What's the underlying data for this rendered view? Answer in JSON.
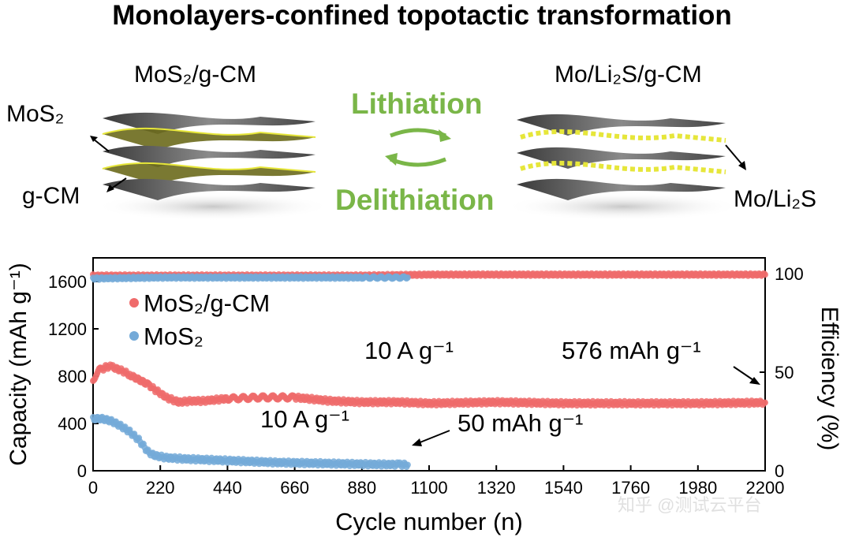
{
  "title": "Monolayers-confined topotactic transformation",
  "schematic": {
    "left_title": "MoS₂/g-CM",
    "right_title": "Mo/Li₂S/g-CM",
    "left_label_top": "MoS₂",
    "left_label_bottom": "g-CM",
    "right_label": "Mo/Li₂S",
    "lithiation": "Lithiation",
    "delithiation": "Delithiation",
    "colors": {
      "green": "#7ab648",
      "yellow": "#e6e63a",
      "layer": "#555555"
    }
  },
  "watermark": "知乎 @测试云平台",
  "chart_data": {
    "type": "scatter",
    "xlabel": "Cycle number (n)",
    "ylabel": "Capacity (mAh g⁻¹)",
    "y2label": "Efficiency (%)",
    "xlim": [
      0,
      2200
    ],
    "ylim": [
      0,
      1800
    ],
    "y2lim": [
      0,
      108
    ],
    "xticks": [
      0,
      220,
      440,
      660,
      880,
      1100,
      1320,
      1540,
      1760,
      1980,
      2200
    ],
    "yticks": [
      0,
      400,
      800,
      1200,
      1600
    ],
    "y2ticks": [
      0,
      50,
      100
    ],
    "legend_position": "top-left",
    "series": [
      {
        "name": "MoS₂/g-CM",
        "color": "#ef6b6b",
        "axis": "left",
        "x": [
          0,
          10,
          20,
          30,
          45,
          60,
          80,
          100,
          120,
          150,
          180,
          200,
          240,
          280,
          320,
          360,
          440,
          550,
          660,
          780,
          880,
          1000,
          1100,
          1320,
          1540,
          1760,
          1980,
          2200
        ],
        "y": [
          760,
          820,
          850,
          860,
          880,
          880,
          860,
          840,
          810,
          770,
          730,
          690,
          620,
          580,
          590,
          590,
          610,
          620,
          620,
          590,
          580,
          580,
          570,
          580,
          570,
          570,
          570,
          576
        ]
      },
      {
        "name": "MoS₂",
        "color": "#74aad8",
        "axis": "left",
        "x": [
          0,
          30,
          60,
          90,
          120,
          150,
          180,
          200,
          240,
          300,
          400,
          500,
          600,
          700,
          800,
          900,
          1000,
          1030
        ],
        "y": [
          440,
          440,
          420,
          380,
          330,
          260,
          160,
          130,
          110,
          100,
          90,
          80,
          70,
          65,
          60,
          55,
          52,
          50
        ]
      },
      {
        "name": "",
        "color": "#ef6b6b",
        "axis": "right",
        "x": [
          0,
          220,
          440,
          660,
          880,
          1100,
          1320,
          1540,
          1760,
          1980,
          2200
        ],
        "y": [
          99,
          99,
          99,
          99,
          99,
          99.5,
          99.5,
          99.5,
          99.5,
          99.5,
          99.5
        ]
      },
      {
        "name": "",
        "color": "#74aad8",
        "axis": "right",
        "x": [
          0,
          220,
          440,
          660,
          880,
          1030
        ],
        "y": [
          97.5,
          98,
          98,
          98,
          98,
          98
        ]
      }
    ],
    "annotations": [
      {
        "text": "10 A g⁻¹",
        "series": "MoS₂/g-CM"
      },
      {
        "text": "576 mAh g⁻¹",
        "series": "MoS₂/g-CM"
      },
      {
        "text": "10 A g⁻¹",
        "series": "MoS₂"
      },
      {
        "text": "50 mAh g⁻¹",
        "series": "MoS₂"
      }
    ]
  }
}
